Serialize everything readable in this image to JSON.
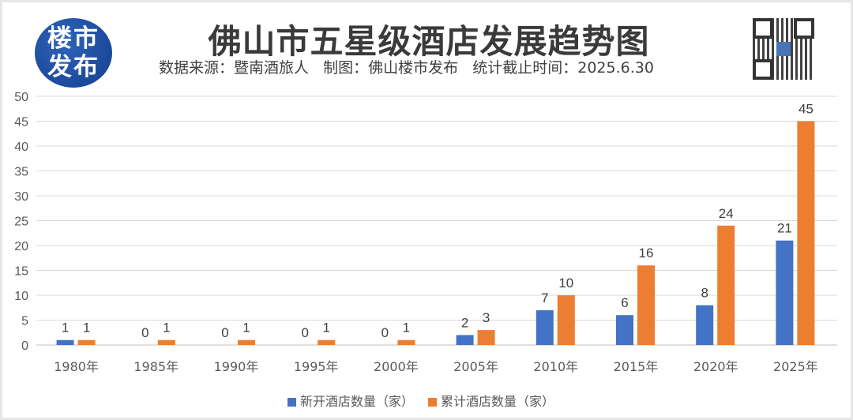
{
  "header": {
    "logo_text": "楼市发布",
    "title": "佛山市五星级酒店发展趋势图",
    "subtitle": "数据来源：暨南酒旅人   制图：佛山楼市发布   统计截止时间：2025.6.30"
  },
  "chart_data": {
    "type": "bar",
    "title": "佛山市五星级酒店发展趋势图",
    "categories": [
      "1980年",
      "1985年",
      "1990年",
      "1995年",
      "2000年",
      "2005年",
      "2010年",
      "2015年",
      "2020年",
      "2025年"
    ],
    "series": [
      {
        "name": "新开酒店数量（家）",
        "color": "#4472C4",
        "values": [
          1,
          0,
          0,
          0,
          0,
          2,
          7,
          6,
          8,
          21
        ]
      },
      {
        "name": "累计酒店数量（家）",
        "color": "#ED7D31",
        "values": [
          1,
          1,
          1,
          1,
          1,
          3,
          10,
          16,
          24,
          45
        ]
      }
    ],
    "ylim": [
      0,
      50
    ],
    "yticks": [
      0,
      5,
      10,
      15,
      20,
      25,
      30,
      35,
      40,
      45,
      50
    ],
    "grid": true,
    "legend": "bottom",
    "data_labels": true
  }
}
